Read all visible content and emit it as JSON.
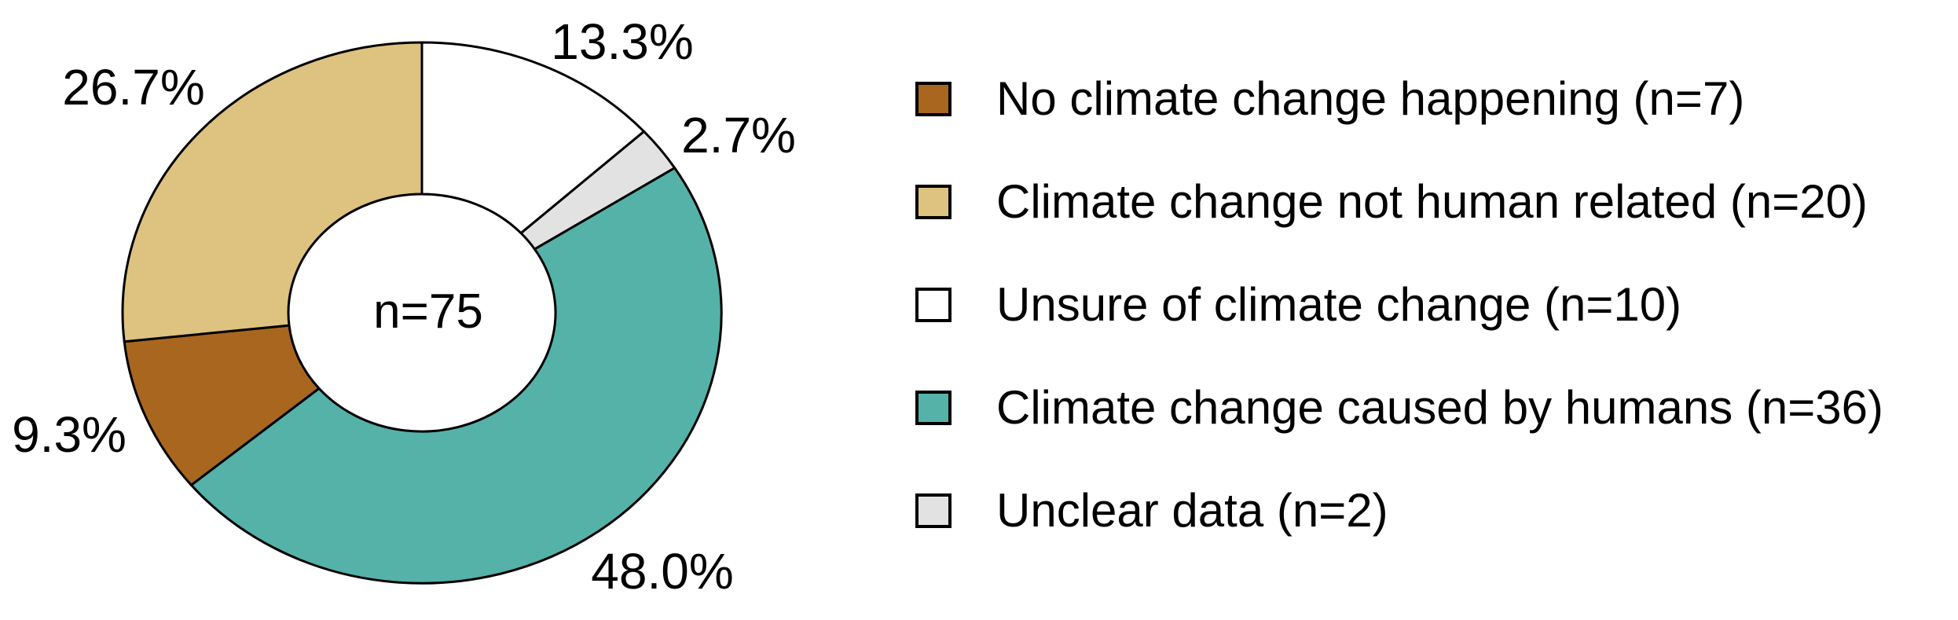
{
  "chart_data": {
    "type": "pie",
    "subtype": "donut",
    "title": "",
    "center_label": "n=75",
    "total_n": 75,
    "start_angle_deg": 0,
    "direction": "clockwise",
    "legend_position": "right",
    "grid": false,
    "outline_color": "#000000",
    "background_color": "#ffffff",
    "slices": [
      {
        "label": "Unsure of climate change",
        "n": 10,
        "value": 13.3,
        "pct_label": "13.3%",
        "color": "#ffffff"
      },
      {
        "label": "Unclear data",
        "n": 2,
        "value": 2.7,
        "pct_label": "2.7%",
        "color": "#e2e2e2"
      },
      {
        "label": "Climate change caused by humans",
        "n": 36,
        "value": 48.0,
        "pct_label": "48.0%",
        "color": "#55b2a8"
      },
      {
        "label": "No climate change happening",
        "n": 7,
        "value": 9.3,
        "pct_label": "9.3%",
        "color": "#a8661f"
      },
      {
        "label": "Climate change not human related",
        "n": 20,
        "value": 26.7,
        "pct_label": "26.7%",
        "color": "#dec27f"
      }
    ],
    "legend": [
      {
        "label": "No climate change happening (n=7)",
        "color": "#a8661f"
      },
      {
        "label": "Climate change not human related (n=20)",
        "color": "#dec27f"
      },
      {
        "label": "Unsure of climate change (n=10)",
        "color": "#ffffff"
      },
      {
        "label": "Climate change caused by humans (n=36)",
        "color": "#55b2a8"
      },
      {
        "label": "Unclear data (n=2)",
        "color": "#e2e2e2"
      }
    ]
  }
}
